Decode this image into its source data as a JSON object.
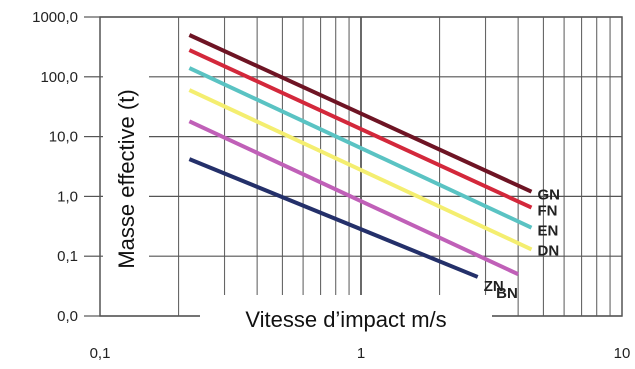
{
  "chart_data": {
    "type": "line",
    "xlabel": "Vitesse d’impact m/s",
    "ylabel": "Masse effective (t)",
    "x_scale": "log",
    "y_scale": "log",
    "xlim": [
      0.1,
      10
    ],
    "ylim": [
      0.01,
      1000
    ],
    "x_ticks": [
      {
        "value": 0.1,
        "label": "0,1"
      },
      {
        "value": 1,
        "label": "1"
      },
      {
        "value": 10,
        "label": "10"
      }
    ],
    "y_ticks": [
      {
        "value": 1000,
        "label": "1000,0"
      },
      {
        "value": 100,
        "label": "100,0"
      },
      {
        "value": 10,
        "label": "10,0"
      },
      {
        "value": 1,
        "label": "1,0"
      },
      {
        "value": 0.1,
        "label": "0,1"
      },
      {
        "value": 0.01,
        "label": "0,0"
      }
    ],
    "grid": true,
    "series": [
      {
        "name": "GN",
        "color": "#6e1424",
        "x": [
          0.22,
          4.5
        ],
        "y": [
          500,
          1.2
        ]
      },
      {
        "name": "FN",
        "color": "#d3283b",
        "x": [
          0.22,
          4.5
        ],
        "y": [
          280,
          0.65
        ]
      },
      {
        "name": "EN",
        "color": "#5ac3c3",
        "x": [
          0.22,
          4.5
        ],
        "y": [
          140,
          0.3
        ]
      },
      {
        "name": "DN",
        "color": "#f4ee70",
        "x": [
          0.22,
          4.5
        ],
        "y": [
          60,
          0.13
        ]
      },
      {
        "name": "BN",
        "color": "#c060b8",
        "x": [
          0.22,
          4.0
        ],
        "y": [
          18,
          0.05
        ]
      },
      {
        "name": "ZN",
        "color": "#24306a",
        "x": [
          0.22,
          2.8
        ],
        "y": [
          4.2,
          0.045
        ]
      }
    ]
  }
}
